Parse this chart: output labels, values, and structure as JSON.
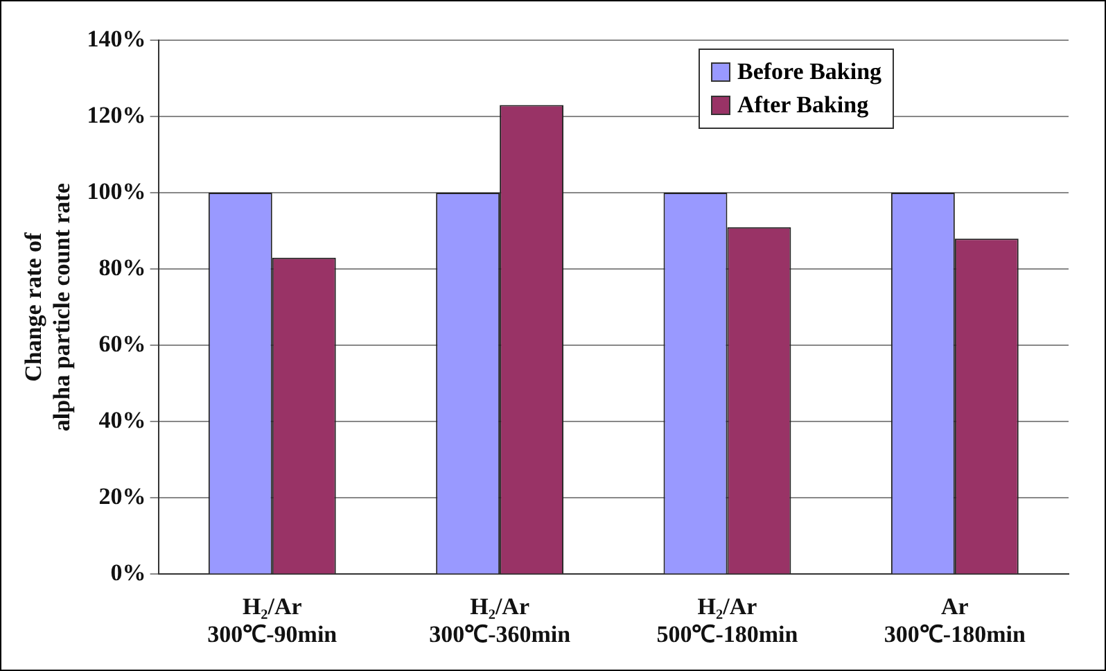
{
  "chart_data": {
    "type": "bar",
    "categories": [
      "H₂/Ar\n300℃-90min",
      "H₂/Ar\n300℃-360min",
      "H₂/Ar\n500℃-180min",
      "Ar\n300℃-180min"
    ],
    "series": [
      {
        "name": "Before Baking",
        "color": "#9999ff",
        "values": [
          100,
          100,
          100,
          100
        ]
      },
      {
        "name": "After Baking",
        "color": "#993366",
        "values": [
          83,
          123,
          91,
          88
        ]
      }
    ],
    "ylabel": "Change rate of\nalpha particle count rate",
    "ylim": [
      0,
      140
    ],
    "yticks": [
      {
        "value": 0,
        "label": "0%"
      },
      {
        "value": 20,
        "label": "20%"
      },
      {
        "value": 40,
        "label": "40%"
      },
      {
        "value": 60,
        "label": "60%"
      },
      {
        "value": 80,
        "label": "80%"
      },
      {
        "value": 100,
        "label": "100%"
      },
      {
        "value": 120,
        "label": "120%"
      },
      {
        "value": 140,
        "label": "140%"
      }
    ],
    "grid": "y",
    "legend": "top right"
  }
}
